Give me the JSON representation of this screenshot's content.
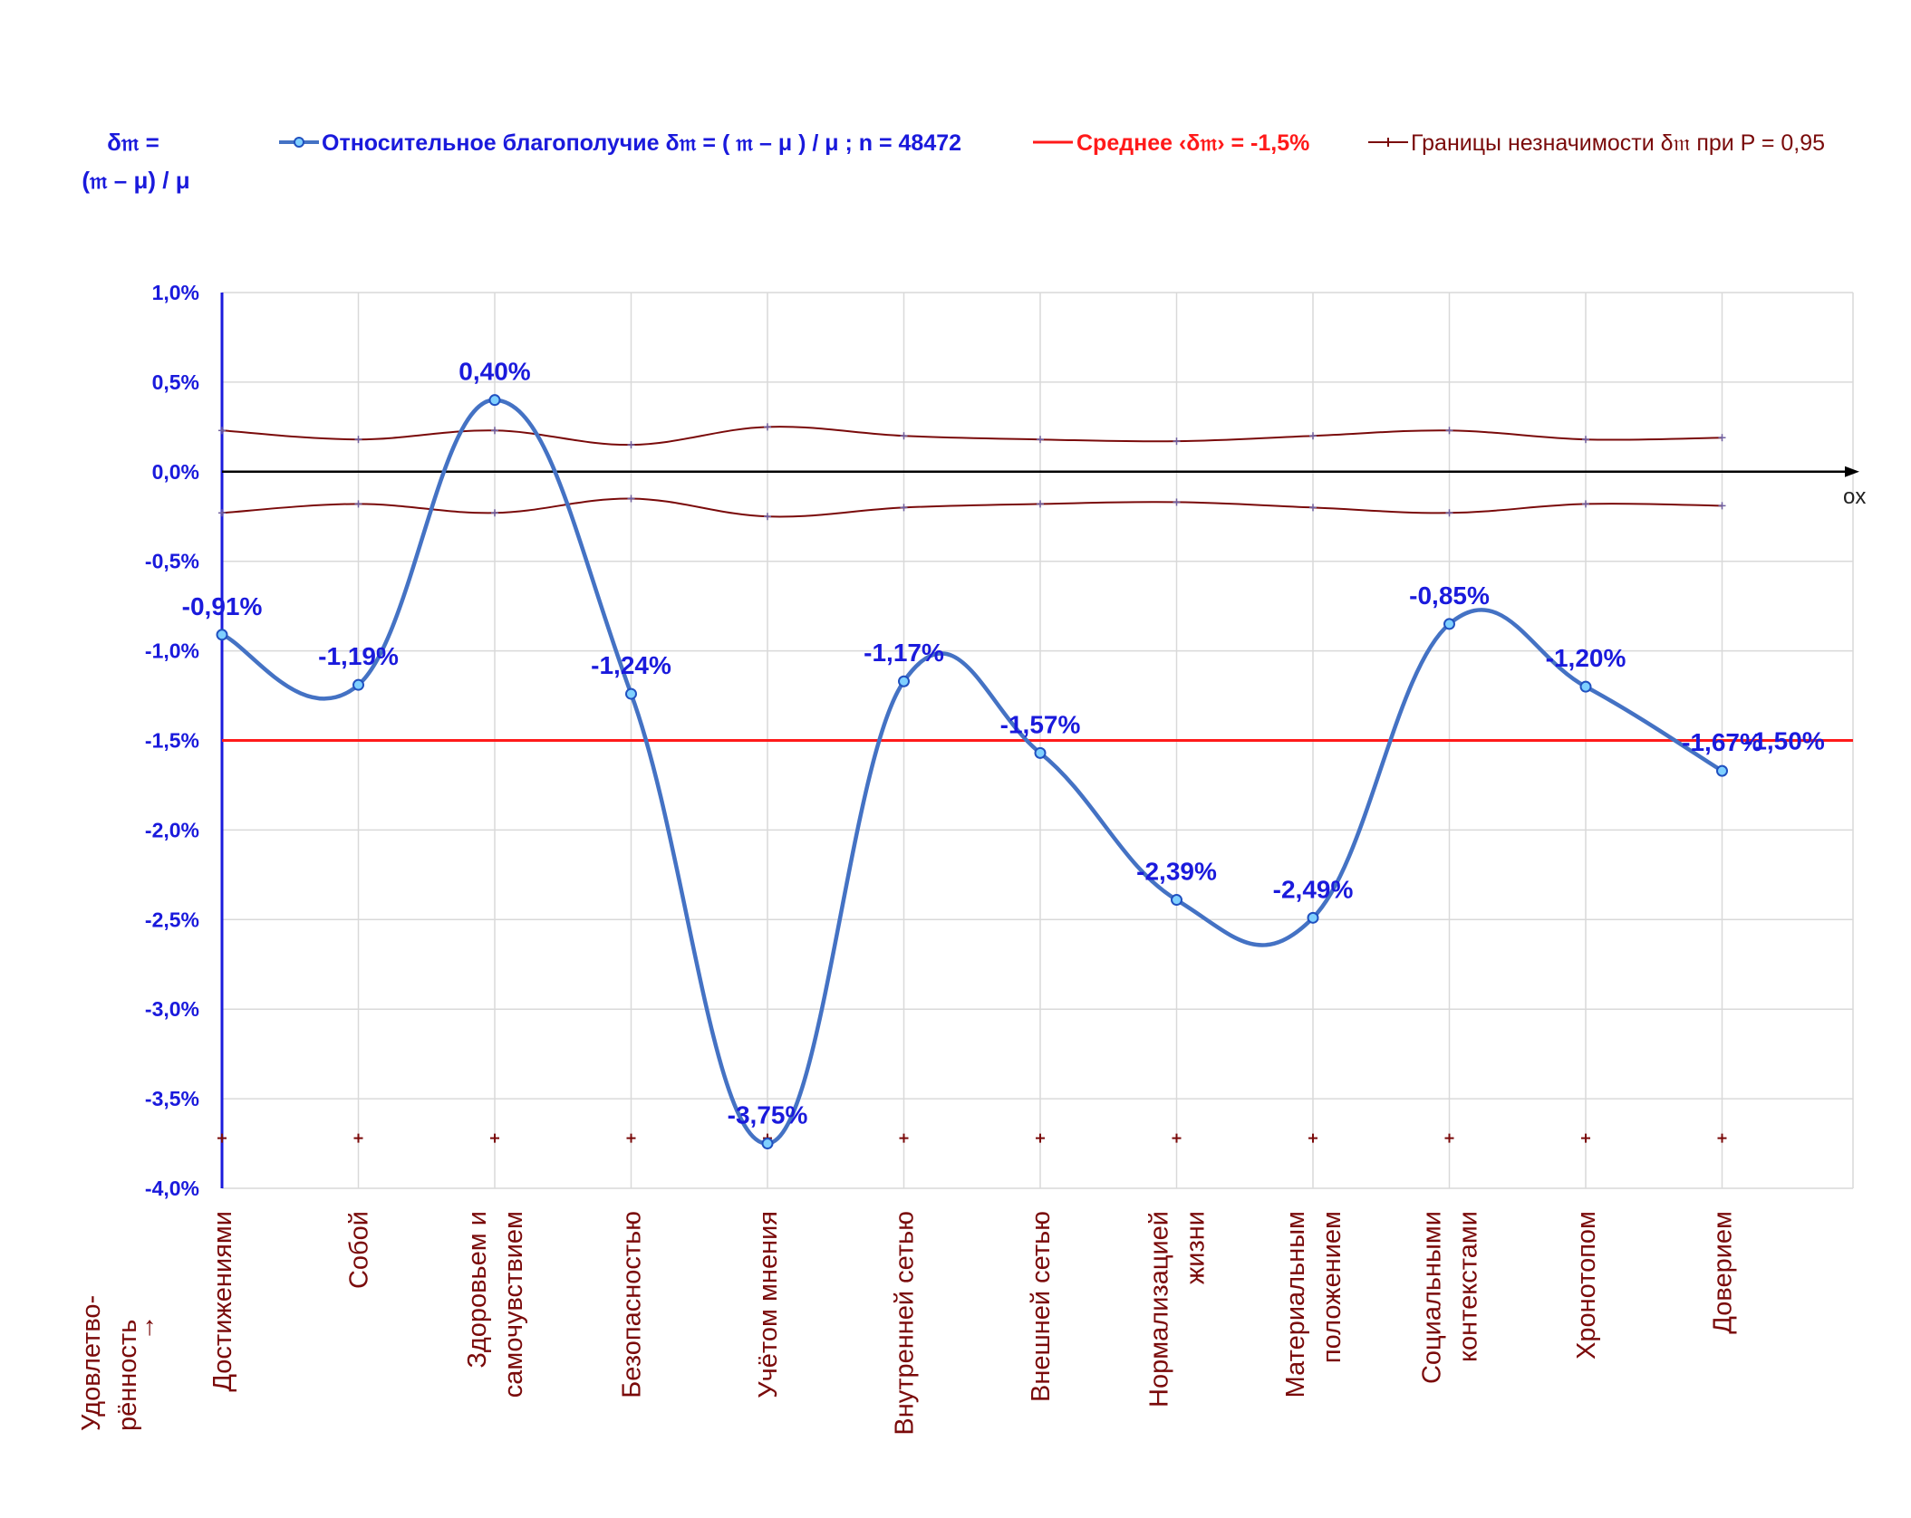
{
  "chart_data": {
    "type": "line",
    "ylabel_line1": "δ𝔪 =",
    "ylabel_line2": "(𝔪 – μ) / μ",
    "xlabel_line1": "Удовлетво-",
    "xlabel_line2": "рённость",
    "xlabel_arrow": "→",
    "x_axis_name": "ox",
    "categories": [
      [
        "Достижениями"
      ],
      [
        "Собой"
      ],
      [
        "Здоровьем и",
        "самочувствием"
      ],
      [
        "Безопасностью"
      ],
      [
        "Учётом мнения"
      ],
      [
        "Внутренней сетью"
      ],
      [
        "Внешней сетью"
      ],
      [
        "Нормализацией",
        "жизни"
      ],
      [
        "Материальным",
        "положением"
      ],
      [
        "Социальными",
        "контекстами"
      ],
      [
        "Хронотопом"
      ],
      [
        "Доверием"
      ]
    ],
    "ylim": [
      -4.0,
      1.0
    ],
    "ytick_labels": [
      "1,0%",
      "0,5%",
      "0,0%",
      "-0,5%",
      "-1,0%",
      "-1,5%",
      "-2,0%",
      "-2,5%",
      "-3,0%",
      "-3,5%",
      "-4,0%"
    ],
    "series": [
      {
        "name": "Относительное благополучие δ𝔪 = ( 𝔪 – μ ) / μ ; n = 48472",
        "color": "#4472c4",
        "values": [
          -0.91,
          -1.19,
          0.4,
          -1.24,
          -3.75,
          -1.17,
          -1.57,
          -2.39,
          -2.49,
          -0.85,
          -1.2,
          -1.67
        ],
        "labels": [
          "-0,91%",
          "-1,19%",
          "0,40%",
          "-1,24%",
          "-3,75%",
          "-1,17%",
          "-1,57%",
          "-2,39%",
          "-2,49%",
          "-0,85%",
          "-1,20%",
          "-1,67%"
        ]
      },
      {
        "name": "Среднее ‹δ𝔪› = -1,5%",
        "color": "#ff1a1a",
        "value": -1.5,
        "label": "-1,50%"
      },
      {
        "name": "Границы незначимости δ𝔪 при P = 0,95",
        "color": "#7a0a0a",
        "upper": [
          0.23,
          0.18,
          0.23,
          0.15,
          0.25,
          0.2,
          0.18,
          0.17,
          0.2,
          0.23,
          0.18,
          0.19
        ],
        "lower": [
          -0.23,
          -0.18,
          -0.23,
          -0.15,
          -0.25,
          -0.2,
          -0.18,
          -0.17,
          -0.2,
          -0.23,
          -0.18,
          -0.19
        ],
        "marker_row_value": -3.72
      }
    ],
    "grid": true
  }
}
